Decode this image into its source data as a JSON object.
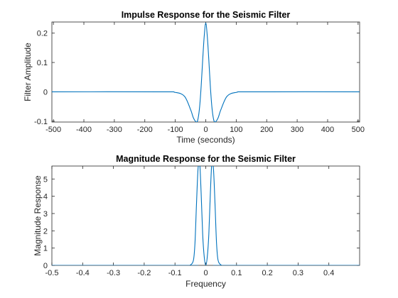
{
  "chart_data": [
    {
      "type": "line",
      "title": "Impulse Response for the Seismic Filter",
      "xlabel": "Time (seconds)",
      "ylabel": "Filter Amplitude",
      "xlim": [
        -505,
        505
      ],
      "ylim": [
        -0.103,
        0.238
      ],
      "xticks": [
        -500,
        -400,
        -300,
        -200,
        -100,
        0,
        100,
        200,
        300,
        400,
        500
      ],
      "xtick_labels": [
        "-500",
        "-400",
        "-300",
        "-200",
        "-100",
        "0",
        "100",
        "200",
        "300",
        "400",
        "500"
      ],
      "yticks": [
        -0.1,
        0,
        0.1,
        0.2
      ],
      "ytick_labels": [
        "-0.1",
        "0",
        "0.1",
        "0.2"
      ],
      "grid": false,
      "series_color": "#0072BD",
      "series": [
        {
          "x": [
            -505,
            -150,
            -100,
            -70,
            -50,
            -40,
            -30,
            -25,
            -20,
            -15,
            -10,
            -5,
            0,
            5,
            10,
            15,
            20,
            25,
            30,
            40,
            50,
            70,
            100,
            150,
            505
          ],
          "y": [
            0,
            0,
            -0.002,
            -0.015,
            -0.06,
            -0.09,
            -0.103,
            -0.09,
            -0.05,
            0.02,
            0.11,
            0.19,
            0.235,
            0.19,
            0.11,
            0.02,
            -0.05,
            -0.09,
            -0.103,
            -0.09,
            -0.06,
            -0.015,
            -0.002,
            0,
            0
          ]
        }
      ]
    },
    {
      "type": "line",
      "title": "Magnitude Response for the Seismic Filter",
      "xlabel": "Frequency",
      "ylabel": "Magnitude Response",
      "xlim": [
        -0.5,
        0.5
      ],
      "ylim": [
        0,
        5.75
      ],
      "xticks": [
        -0.5,
        -0.4,
        -0.3,
        -0.2,
        -0.1,
        0,
        0.1,
        0.2,
        0.3,
        0.4
      ],
      "xtick_labels": [
        "-0.5",
        "-0.4",
        "-0.3",
        "-0.2",
        "-0.1",
        "0",
        "0.1",
        "0.2",
        "0.3",
        "0.4"
      ],
      "yticks": [
        0,
        1,
        2,
        3,
        4,
        5
      ],
      "ytick_labels": [
        "0",
        "1",
        "2",
        "3",
        "4",
        "5"
      ],
      "grid": false,
      "series_color": "#0072BD",
      "series": [
        {
          "x": [
            -0.5,
            -0.06,
            -0.05,
            -0.04,
            -0.035,
            -0.03,
            -0.025,
            -0.02,
            -0.015,
            -0.01,
            -0.005,
            0,
            0.005,
            0.01,
            0.015,
            0.02,
            0.025,
            0.03,
            0.035,
            0.04,
            0.05,
            0.06,
            0.5
          ],
          "y": [
            0,
            0,
            0.02,
            0.3,
            1.3,
            3.6,
            5.6,
            6.0,
            4.2,
            1.8,
            0.5,
            0,
            0.5,
            1.8,
            4.2,
            6.0,
            5.6,
            3.6,
            1.3,
            0.3,
            0.02,
            0,
            0
          ]
        }
      ]
    }
  ]
}
